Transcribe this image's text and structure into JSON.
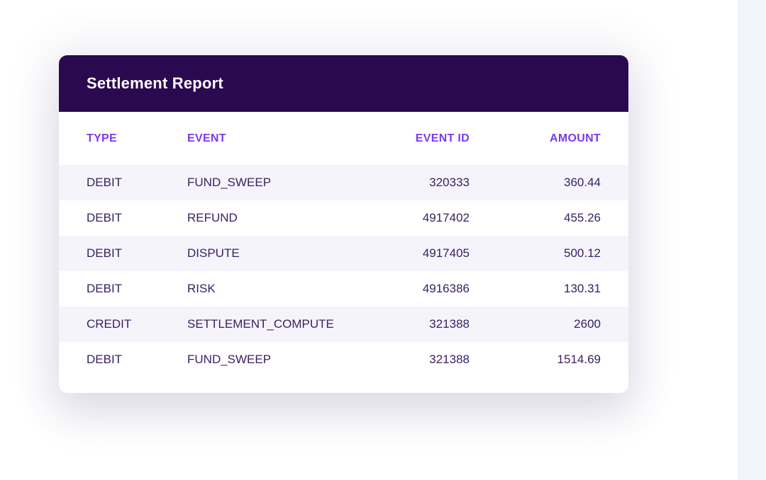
{
  "page": {
    "background_color": "#ffffff",
    "right_strip_color": "#f4f4fd"
  },
  "card": {
    "title": "Settlement Report",
    "header_bg_color": "#2a0950",
    "title_color": "#ffffff",
    "accent_color": "#7c3aed",
    "cell_text_color": "#3a2161",
    "alt_row_color": "#f5f4fb"
  },
  "table": {
    "columns": [
      {
        "key": "type",
        "label": "TYPE",
        "align": "left"
      },
      {
        "key": "event",
        "label": "EVENT",
        "align": "left"
      },
      {
        "key": "event_id",
        "label": "EVENT ID",
        "align": "right"
      },
      {
        "key": "amount",
        "label": "AMOUNT",
        "align": "right"
      }
    ],
    "rows": [
      {
        "type": "DEBIT",
        "event": "FUND_SWEEP",
        "event_id": "320333",
        "amount": "360.44"
      },
      {
        "type": "DEBIT",
        "event": "REFUND",
        "event_id": "4917402",
        "amount": "455.26"
      },
      {
        "type": "DEBIT",
        "event": "DISPUTE",
        "event_id": "4917405",
        "amount": "500.12"
      },
      {
        "type": "DEBIT",
        "event": "RISK",
        "event_id": "4916386",
        "amount": "130.31"
      },
      {
        "type": "CREDIT",
        "event": "SETTLEMENT_COMPUTE",
        "event_id": "321388",
        "amount": "2600"
      },
      {
        "type": "DEBIT",
        "event": "FUND_SWEEP",
        "event_id": "321388",
        "amount": "1514.69"
      }
    ]
  }
}
